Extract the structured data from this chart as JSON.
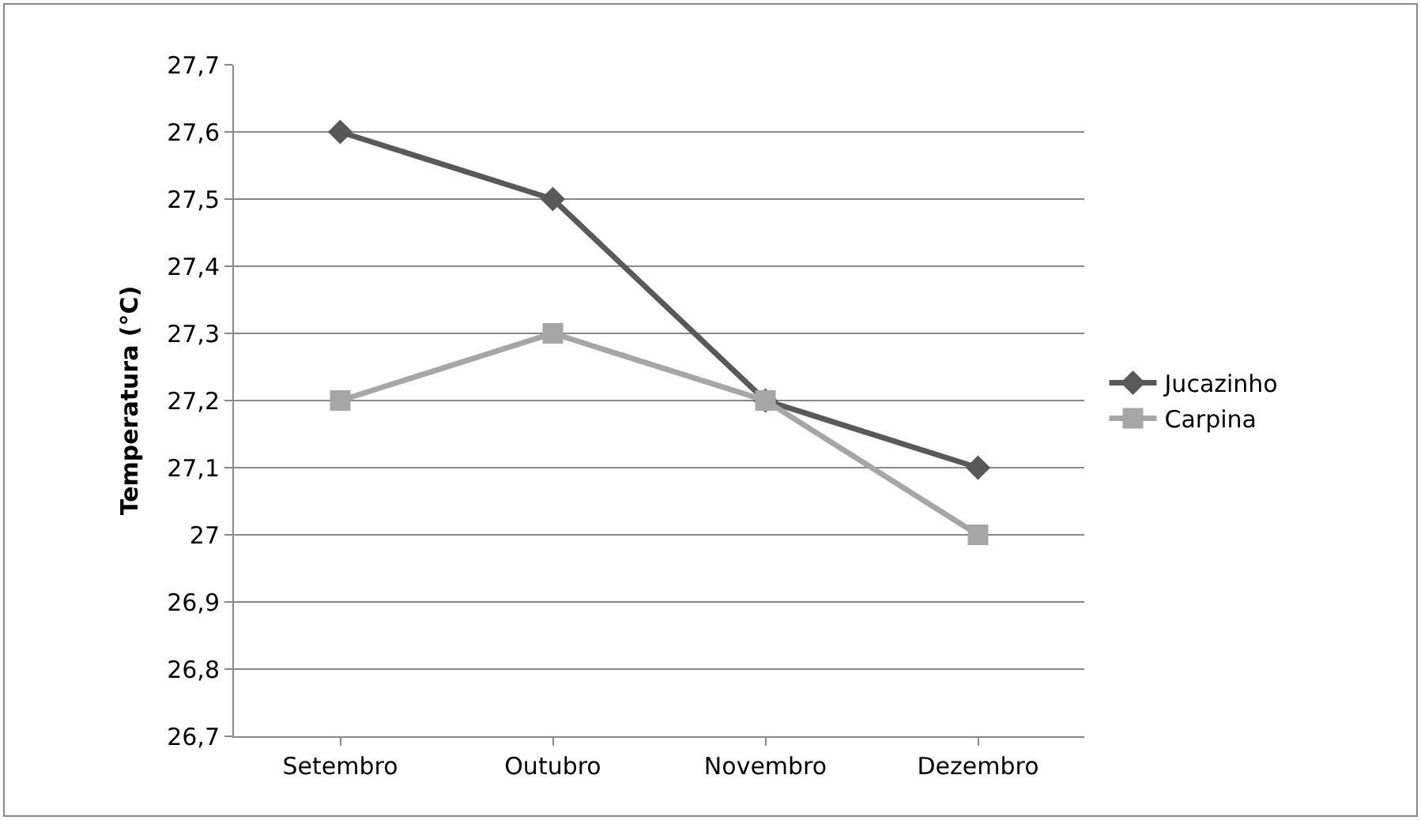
{
  "chart_data": {
    "type": "line",
    "ylabel": "Temperatura (°C)",
    "categories": [
      "Setembro",
      "Outubro",
      "Novembro",
      "Dezembro"
    ],
    "series": [
      {
        "name": "Jucazinho",
        "color": "#595959",
        "marker": "diamond",
        "values": [
          27.6,
          27.5,
          27.2,
          27.1
        ]
      },
      {
        "name": "Carpina",
        "color": "#a6a6a6",
        "marker": "square",
        "values": [
          27.2,
          27.3,
          27.2,
          27.0
        ]
      }
    ],
    "ylim": [
      26.7,
      27.7
    ],
    "yticks": [
      {
        "value": 26.7,
        "label": "26,7"
      },
      {
        "value": 26.8,
        "label": "26,8"
      },
      {
        "value": 26.9,
        "label": "26,9"
      },
      27,
      {
        "value": 27.1,
        "label": "27,1"
      },
      {
        "value": 27.2,
        "label": "27,2"
      },
      {
        "value": 27.3,
        "label": "27,3"
      },
      {
        "value": 27.4,
        "label": "27,4"
      },
      {
        "value": 27.5,
        "label": "27,5"
      },
      {
        "value": 27.6,
        "label": "27,6"
      },
      {
        "value": 27.7,
        "label": "27,7"
      }
    ],
    "grid": "y",
    "legend": "right",
    "line_style": "solid"
  }
}
